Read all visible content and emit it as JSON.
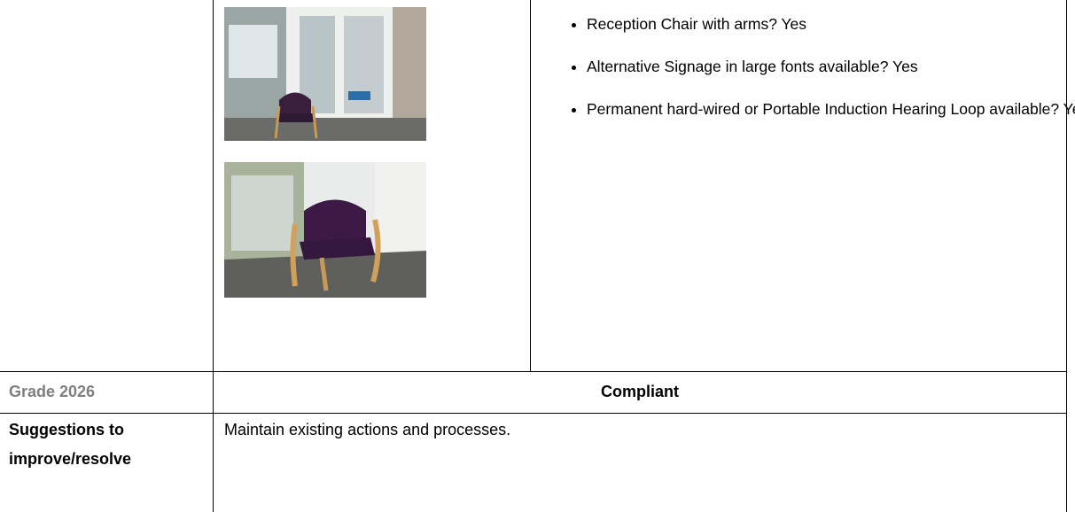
{
  "features": [
    "Reception Chair with arms? Yes",
    "Alternative Signage in large fonts available? Yes",
    "Permanent hard-wired or Portable Induction Hearing Loop available? Yes"
  ],
  "grade": {
    "label": "Grade 2026",
    "value": "Compliant"
  },
  "suggestions": {
    "label": "Suggestions to improve/resolve",
    "text": "Maintain existing actions and processes."
  }
}
